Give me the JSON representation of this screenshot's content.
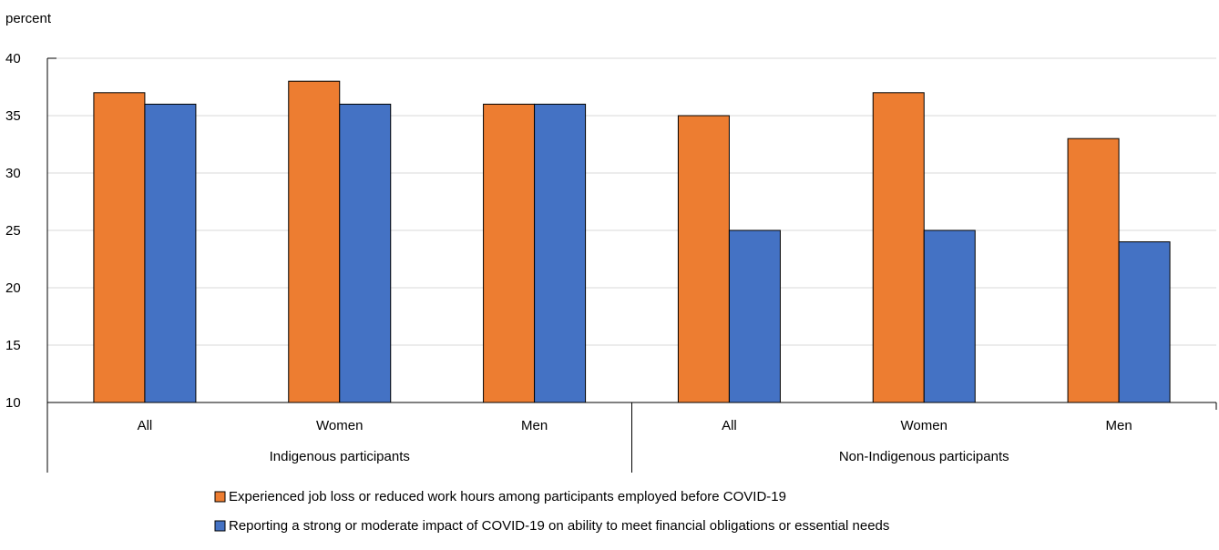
{
  "chart_data": {
    "type": "bar",
    "ylabel": "percent",
    "ylim": [
      10,
      40
    ],
    "yticks": [
      10,
      15,
      20,
      25,
      30,
      35,
      40
    ],
    "grid": true,
    "legend_position": "bottom",
    "groups": [
      {
        "label": "Indigenous participants",
        "categories": [
          "All",
          "Women",
          "Men"
        ]
      },
      {
        "label": "Non-Indigenous participants",
        "categories": [
          "All",
          "Women",
          "Men"
        ]
      }
    ],
    "series": [
      {
        "name": "Experienced job loss or reduced work hours among participants employed before COVID-19",
        "color": "#ed7d31",
        "values": [
          37,
          38,
          36,
          35,
          37,
          33
        ]
      },
      {
        "name": "Reporting a strong or moderate impact of COVID-19 on ability to meet financial obligations or essential needs",
        "color": "#4472c4",
        "values": [
          36,
          36,
          36,
          25,
          25,
          24
        ]
      }
    ]
  }
}
